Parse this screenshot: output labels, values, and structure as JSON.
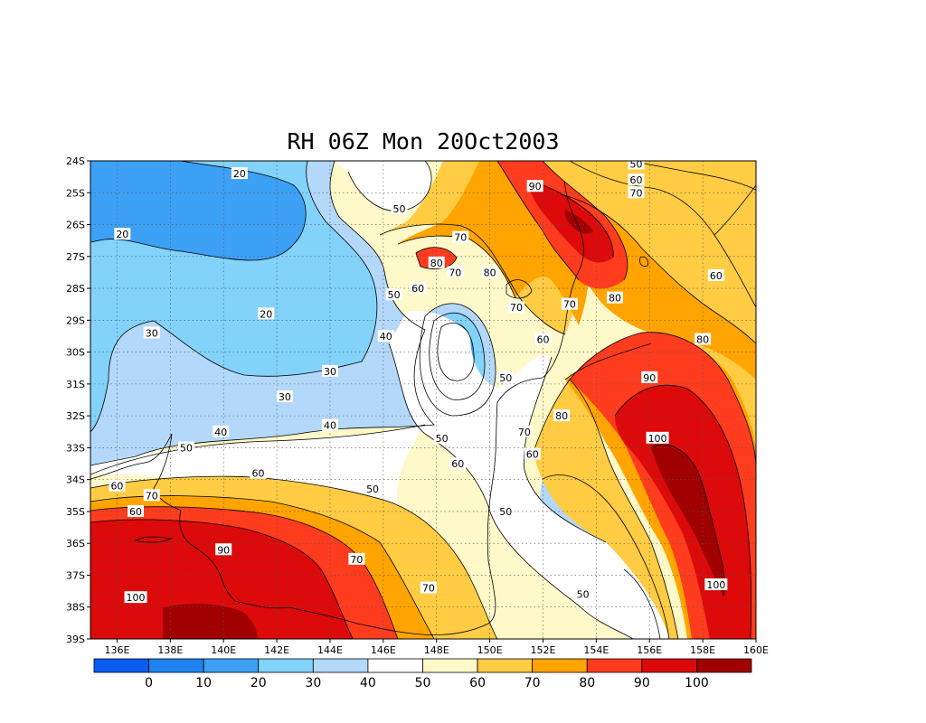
{
  "title": "RH 06Z Mon 20Oct2003",
  "map": {
    "lon_range": [
      135,
      160
    ],
    "lat_range": [
      -39,
      -24
    ],
    "lon_ticks": [
      "136E",
      "138E",
      "140E",
      "142E",
      "144E",
      "146E",
      "148E",
      "150E",
      "152E",
      "154E",
      "156E",
      "158E",
      "160E"
    ],
    "lat_ticks": [
      "24S",
      "25S",
      "26S",
      "27S",
      "28S",
      "29S",
      "30S",
      "31S",
      "32S",
      "33S",
      "34S",
      "35S",
      "36S",
      "37S",
      "38S",
      "39S"
    ],
    "grid": "dotted"
  },
  "colorbar": {
    "levels": [
      "0",
      "10",
      "20",
      "30",
      "40",
      "50",
      "60",
      "70",
      "80",
      "90",
      "100"
    ],
    "colors": [
      "#0a5cf0",
      "#1e82f0",
      "#3ca0f5",
      "#82d2fa",
      "#b4d8fa",
      "#ffffff",
      "#fff8c8",
      "#ffcc44",
      "#ffa400",
      "#ff3c1e",
      "#dc0a0a",
      "#a00000"
    ]
  },
  "contour_labels": [
    {
      "text": "20",
      "lon": 140.6,
      "lat": -24.4
    },
    {
      "text": "20",
      "lon": 136.2,
      "lat": -26.3
    },
    {
      "text": "20",
      "lon": 141.6,
      "lat": -28.8
    },
    {
      "text": "30",
      "lon": 137.3,
      "lat": -29.4
    },
    {
      "text": "30",
      "lon": 144.0,
      "lat": -30.6
    },
    {
      "text": "30",
      "lon": 142.3,
      "lat": -31.4
    },
    {
      "text": "40",
      "lon": 146.1,
      "lat": -29.5
    },
    {
      "text": "40",
      "lon": 144.0,
      "lat": -32.3
    },
    {
      "text": "40",
      "lon": 139.9,
      "lat": -32.5
    },
    {
      "text": "50",
      "lon": 146.6,
      "lat": -25.5
    },
    {
      "text": "50",
      "lon": 146.4,
      "lat": -28.2
    },
    {
      "text": "50",
      "lon": 138.6,
      "lat": -33.0
    },
    {
      "text": "50",
      "lon": 145.6,
      "lat": -34.3
    },
    {
      "text": "50",
      "lon": 148.2,
      "lat": -32.7
    },
    {
      "text": "50",
      "lon": 150.6,
      "lat": -30.8
    },
    {
      "text": "50",
      "lon": 150.6,
      "lat": -35.0
    },
    {
      "text": "50",
      "lon": 153.5,
      "lat": -37.6
    },
    {
      "text": "50",
      "lon": 155.5,
      "lat": -24.1
    },
    {
      "text": "60",
      "lon": 155.5,
      "lat": -24.6
    },
    {
      "text": "60",
      "lon": 147.3,
      "lat": -28.0
    },
    {
      "text": "60",
      "lon": 136.0,
      "lat": -34.2
    },
    {
      "text": "60",
      "lon": 141.3,
      "lat": -33.8
    },
    {
      "text": "60",
      "lon": 148.8,
      "lat": -33.5
    },
    {
      "text": "60",
      "lon": 136.7,
      "lat": -35.0
    },
    {
      "text": "60",
      "lon": 151.6,
      "lat": -33.2
    },
    {
      "text": "60",
      "lon": 152.0,
      "lat": -29.6
    },
    {
      "text": "60",
      "lon": 158.5,
      "lat": -27.6
    },
    {
      "text": "70",
      "lon": 148.9,
      "lat": -26.4
    },
    {
      "text": "70",
      "lon": 148.7,
      "lat": -27.5
    },
    {
      "text": "70",
      "lon": 137.3,
      "lat": -34.5
    },
    {
      "text": "70",
      "lon": 151.0,
      "lat": -28.6
    },
    {
      "text": "70",
      "lon": 153.0,
      "lat": -28.5
    },
    {
      "text": "70",
      "lon": 145.0,
      "lat": -36.5
    },
    {
      "text": "70",
      "lon": 147.7,
      "lat": -37.4
    },
    {
      "text": "70",
      "lon": 151.3,
      "lat": -32.5
    },
    {
      "text": "70",
      "lon": 155.5,
      "lat": -25.0
    },
    {
      "text": "80",
      "lon": 148.0,
      "lat": -27.2
    },
    {
      "text": "80",
      "lon": 150.0,
      "lat": -27.5
    },
    {
      "text": "80",
      "lon": 154.7,
      "lat": -28.3
    },
    {
      "text": "80",
      "lon": 152.7,
      "lat": -32.0
    },
    {
      "text": "80",
      "lon": 158.0,
      "lat": -29.6
    },
    {
      "text": "90",
      "lon": 151.7,
      "lat": -24.8
    },
    {
      "text": "90",
      "lon": 140.0,
      "lat": -36.2
    },
    {
      "text": "90",
      "lon": 156.0,
      "lat": -30.8
    },
    {
      "text": "100",
      "lon": 136.7,
      "lat": -37.7
    },
    {
      "text": "100",
      "lon": 156.3,
      "lat": -32.7
    },
    {
      "text": "100",
      "lon": 158.5,
      "lat": -37.3
    }
  ]
}
